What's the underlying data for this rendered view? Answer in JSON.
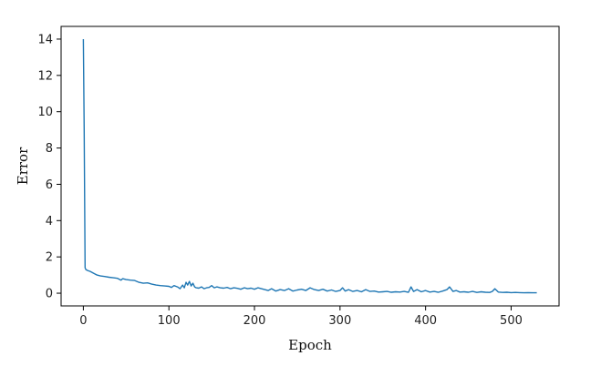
{
  "chart_data": {
    "type": "line",
    "title": "",
    "xlabel": "Epoch",
    "ylabel": "Error",
    "xlim": [
      -26,
      556
    ],
    "ylim": [
      -0.7,
      14.7
    ],
    "xticks": [
      0,
      100,
      200,
      300,
      400,
      500
    ],
    "yticks": [
      0,
      2,
      4,
      6,
      8,
      10,
      12,
      14
    ],
    "grid": false,
    "legend": "none",
    "colors": {
      "line": "#1f77b4",
      "axes": "#000000"
    },
    "series": [
      {
        "x": [
          0,
          1,
          2,
          3,
          5,
          8,
          12,
          16,
          20,
          25,
          30,
          35,
          40,
          44,
          46,
          50,
          55,
          60,
          65,
          70,
          75,
          80,
          85,
          90,
          95,
          100,
          103,
          106,
          110,
          113,
          116,
          118,
          120,
          122,
          124,
          126,
          128,
          130,
          132,
          135,
          138,
          141,
          144,
          147,
          150,
          153,
          156,
          160,
          164,
          168,
          172,
          176,
          180,
          184,
          188,
          192,
          196,
          200,
          204,
          208,
          212,
          216,
          220,
          225,
          230,
          235,
          240,
          245,
          250,
          255,
          260,
          265,
          270,
          275,
          280,
          285,
          290,
          295,
          300,
          303,
          306,
          310,
          315,
          320,
          325,
          330,
          335,
          340,
          345,
          350,
          355,
          360,
          365,
          370,
          375,
          380,
          383,
          386,
          390,
          395,
          400,
          405,
          410,
          415,
          420,
          425,
          428,
          432,
          436,
          440,
          445,
          450,
          455,
          460,
          465,
          470,
          475,
          478,
          481,
          485,
          490,
          495,
          500,
          505,
          510,
          515,
          520,
          525,
          530
        ],
        "y": [
          14.0,
          9.0,
          1.4,
          1.3,
          1.25,
          1.2,
          1.1,
          1.0,
          0.95,
          0.92,
          0.88,
          0.85,
          0.82,
          0.72,
          0.8,
          0.75,
          0.72,
          0.7,
          0.6,
          0.55,
          0.57,
          0.5,
          0.45,
          0.42,
          0.4,
          0.38,
          0.32,
          0.42,
          0.35,
          0.25,
          0.45,
          0.3,
          0.6,
          0.45,
          0.65,
          0.4,
          0.55,
          0.35,
          0.3,
          0.28,
          0.35,
          0.25,
          0.3,
          0.32,
          0.42,
          0.3,
          0.35,
          0.3,
          0.28,
          0.32,
          0.25,
          0.3,
          0.27,
          0.22,
          0.3,
          0.25,
          0.28,
          0.22,
          0.3,
          0.25,
          0.2,
          0.15,
          0.25,
          0.12,
          0.2,
          0.15,
          0.25,
          0.12,
          0.18,
          0.22,
          0.15,
          0.3,
          0.2,
          0.15,
          0.22,
          0.12,
          0.18,
          0.1,
          0.15,
          0.3,
          0.12,
          0.2,
          0.1,
          0.15,
          0.08,
          0.2,
          0.1,
          0.12,
          0.06,
          0.08,
          0.1,
          0.05,
          0.08,
          0.06,
          0.1,
          0.05,
          0.35,
          0.1,
          0.2,
          0.08,
          0.15,
          0.06,
          0.1,
          0.05,
          0.12,
          0.2,
          0.35,
          0.1,
          0.15,
          0.06,
          0.08,
          0.05,
          0.1,
          0.04,
          0.08,
          0.05,
          0.04,
          0.1,
          0.25,
          0.06,
          0.04,
          0.05,
          0.03,
          0.04,
          0.03,
          0.02,
          0.03,
          0.02,
          0.02
        ]
      }
    ]
  }
}
